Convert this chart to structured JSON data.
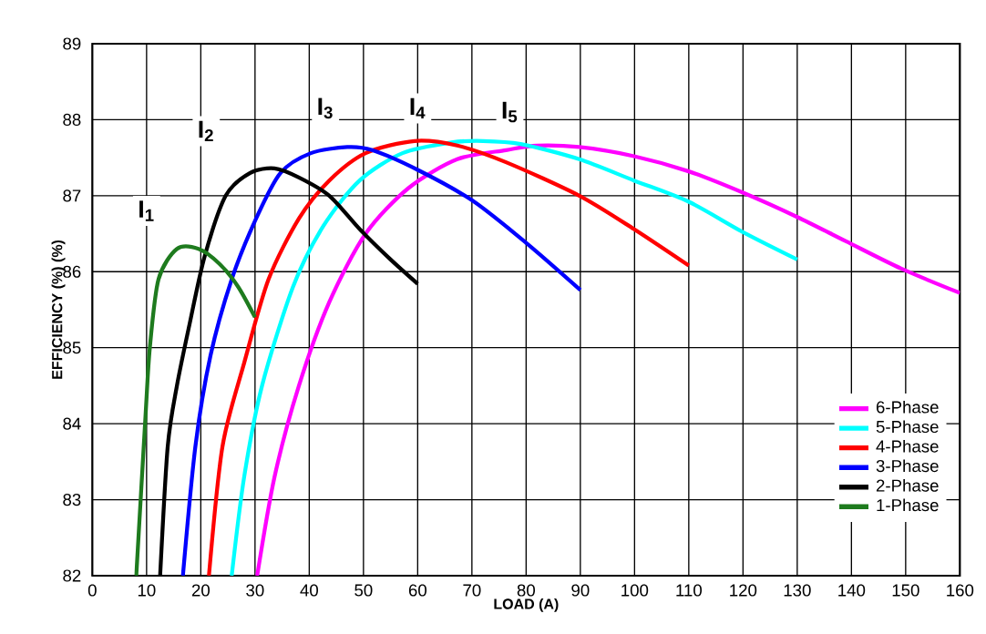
{
  "chart_data": {
    "type": "line",
    "xlabel": "LOAD (A)",
    "ylabel": "EFFICIENCY (%) (%)",
    "xlim": [
      0,
      160
    ],
    "ylim": [
      82,
      89
    ],
    "xticks": [
      0,
      10,
      20,
      30,
      40,
      50,
      60,
      70,
      80,
      90,
      100,
      110,
      120,
      130,
      140,
      150,
      160
    ],
    "yticks": [
      82,
      83,
      84,
      85,
      86,
      87,
      88,
      89
    ],
    "grid": true,
    "legend": "bottom right",
    "marker": "none",
    "line_style": "solid",
    "series": [
      {
        "name": "6-Phase",
        "color": "#ff00ff",
        "x": [
          30.4,
          33.6,
          38.1,
          43.7,
          50.4,
          58.3,
          67.3,
          76.3,
          82,
          89.8,
          99.9,
          110,
          120,
          130,
          139,
          149.2,
          160
        ],
        "values": [
          82,
          83.3,
          84.5,
          85.6,
          86.5,
          87.1,
          87.48,
          87.6,
          87.66,
          87.64,
          87.52,
          87.32,
          87.04,
          86.72,
          86.4,
          86.04,
          85.72
        ]
      },
      {
        "name": "5-Phase",
        "color": "#00ffff",
        "x": [
          25.7,
          28,
          31.3,
          37,
          42.6,
          49.3,
          57.2,
          66.2,
          72,
          79,
          89.8,
          99.9,
          110,
          120,
          130
        ],
        "values": [
          82,
          83.3,
          84.5,
          85.8,
          86.6,
          87.2,
          87.56,
          87.7,
          87.72,
          87.68,
          87.48,
          87.2,
          86.92,
          86.52,
          86.16
        ]
      },
      {
        "name": "4-Phase",
        "color": "#ff0000",
        "x": [
          21.5,
          24,
          28,
          32.5,
          38.1,
          43.7,
          50.4,
          59.4,
          67.3,
          76.3,
          89.8,
          99.9,
          110
        ],
        "values": [
          82,
          83.7,
          84.8,
          85.9,
          86.7,
          87.2,
          87.56,
          87.72,
          87.66,
          87.44,
          87.0,
          86.56,
          86.08
        ]
      },
      {
        "name": "3-Phase",
        "color": "#0000ff",
        "x": [
          16.7,
          19,
          21.8,
          25.7,
          30.2,
          34.7,
          40.3,
          47,
          51.6,
          60,
          70,
          80,
          90
        ],
        "values": [
          82,
          83.7,
          84.9,
          85.9,
          86.7,
          87.3,
          87.56,
          87.64,
          87.6,
          87.34,
          86.94,
          86.38,
          85.76
        ]
      },
      {
        "name": "2-Phase",
        "color": "#000000",
        "x": [
          12.5,
          13.9,
          15.6,
          17.9,
          20.7,
          24.6,
          29.1,
          33.6,
          38.1,
          43.7,
          49.3,
          55,
          60
        ],
        "values": [
          82,
          83.7,
          84.5,
          85.3,
          86.2,
          87.0,
          87.3,
          87.36,
          87.24,
          87.0,
          86.56,
          86.16,
          85.84
        ]
      },
      {
        "name": "1-Phase",
        "color": "#1e7b1e",
        "x": [
          8.1,
          9.8,
          10.6,
          12.2,
          15.6,
          19.6,
          23.5,
          26.9,
          30
        ],
        "values": [
          82,
          84.1,
          85.0,
          85.9,
          86.3,
          86.3,
          86.1,
          85.8,
          85.4
        ]
      }
    ],
    "annotations": [
      {
        "text": "I$_{1}$",
        "x": 10,
        "y": 86.8
      },
      {
        "text": "I$_{2}$",
        "x": 21,
        "y": 87.85
      },
      {
        "text": "I$_{3}$",
        "x": 43,
        "y": 88.15
      },
      {
        "text": "I$_{4}$",
        "x": 60,
        "y": 88.15
      },
      {
        "text": "I$_{5}$",
        "x": 77,
        "y": 88.1
      }
    ]
  }
}
